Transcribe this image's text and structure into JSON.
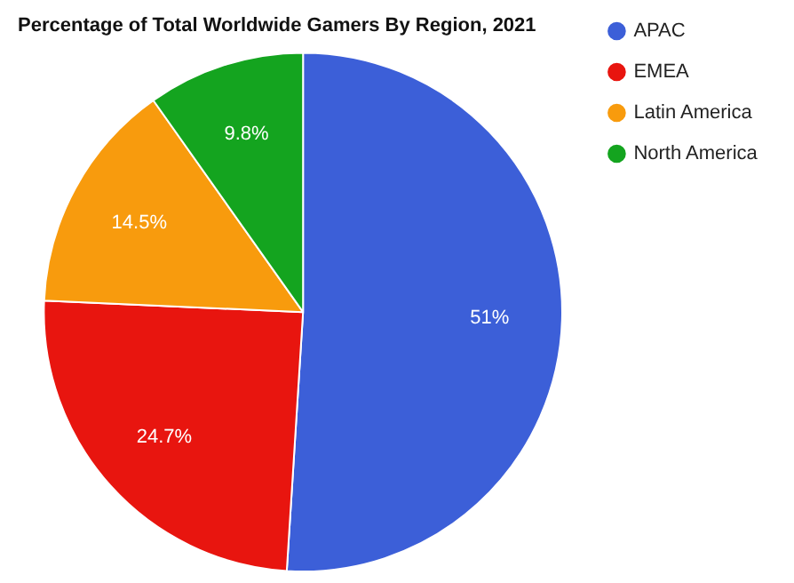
{
  "chart_data": {
    "type": "pie",
    "title": "Percentage of Total Worldwide Gamers By Region, 2021",
    "categories": [
      "APAC",
      "EMEA",
      "Latin America",
      "North America"
    ],
    "values": [
      51,
      24.7,
      14.5,
      9.8
    ],
    "colors": [
      "#3c5fd8",
      "#e8150f",
      "#f89b0d",
      "#14a41f"
    ],
    "value_labels": [
      "51%",
      "24.7%",
      "14.5%",
      "9.8%"
    ],
    "legend": "top right"
  }
}
